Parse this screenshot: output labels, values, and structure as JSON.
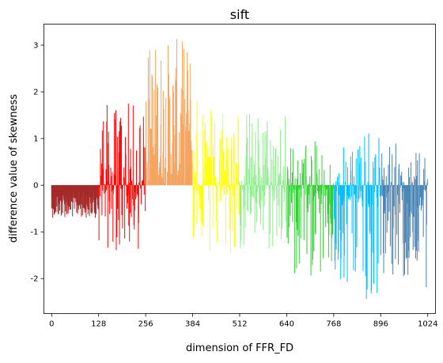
{
  "chart_data": {
    "type": "bar",
    "title": "sift",
    "xlabel": "dimension of FFR_FD",
    "ylabel": "difference value of skewness",
    "xlim": [
      -21,
      1045
    ],
    "ylim": [
      -2.75,
      3.45
    ],
    "xticks": [
      0,
      128,
      256,
      384,
      512,
      640,
      768,
      896,
      1024
    ],
    "yticks": [
      3,
      2,
      1,
      0,
      -1,
      -2
    ],
    "ytick_labels": [
      "3",
      "2",
      "1",
      "0",
      "-1",
      "-2"
    ],
    "grid": false,
    "legend": "none",
    "series": [
      {
        "range": [
          0,
          128
        ],
        "color": "#a52a2a",
        "pos_max": 0.0,
        "neg_min": -0.7
      },
      {
        "range": [
          128,
          256
        ],
        "color": "#ff0000",
        "pos_max": 1.78,
        "neg_min": -1.42
      },
      {
        "range": [
          256,
          384
        ],
        "color": "#f4a460",
        "pos_max": 3.15,
        "neg_min": 0.0
      },
      {
        "range": [
          384,
          512
        ],
        "color": "#ffff00",
        "pos_max": 1.95,
        "neg_min": -1.6
      },
      {
        "range": [
          512,
          640
        ],
        "color": "#90ee90",
        "pos_max": 1.62,
        "neg_min": -1.48
      },
      {
        "range": [
          640,
          768
        ],
        "color": "#32cd32",
        "pos_max": 0.95,
        "neg_min": -2.02
      },
      {
        "range": [
          768,
          896
        ],
        "color": "#00bfff",
        "pos_max": 1.12,
        "neg_min": -2.5
      },
      {
        "range": [
          896,
          1024
        ],
        "color": "#4682b4",
        "pos_max": 0.92,
        "neg_min": -2.2
      }
    ]
  }
}
